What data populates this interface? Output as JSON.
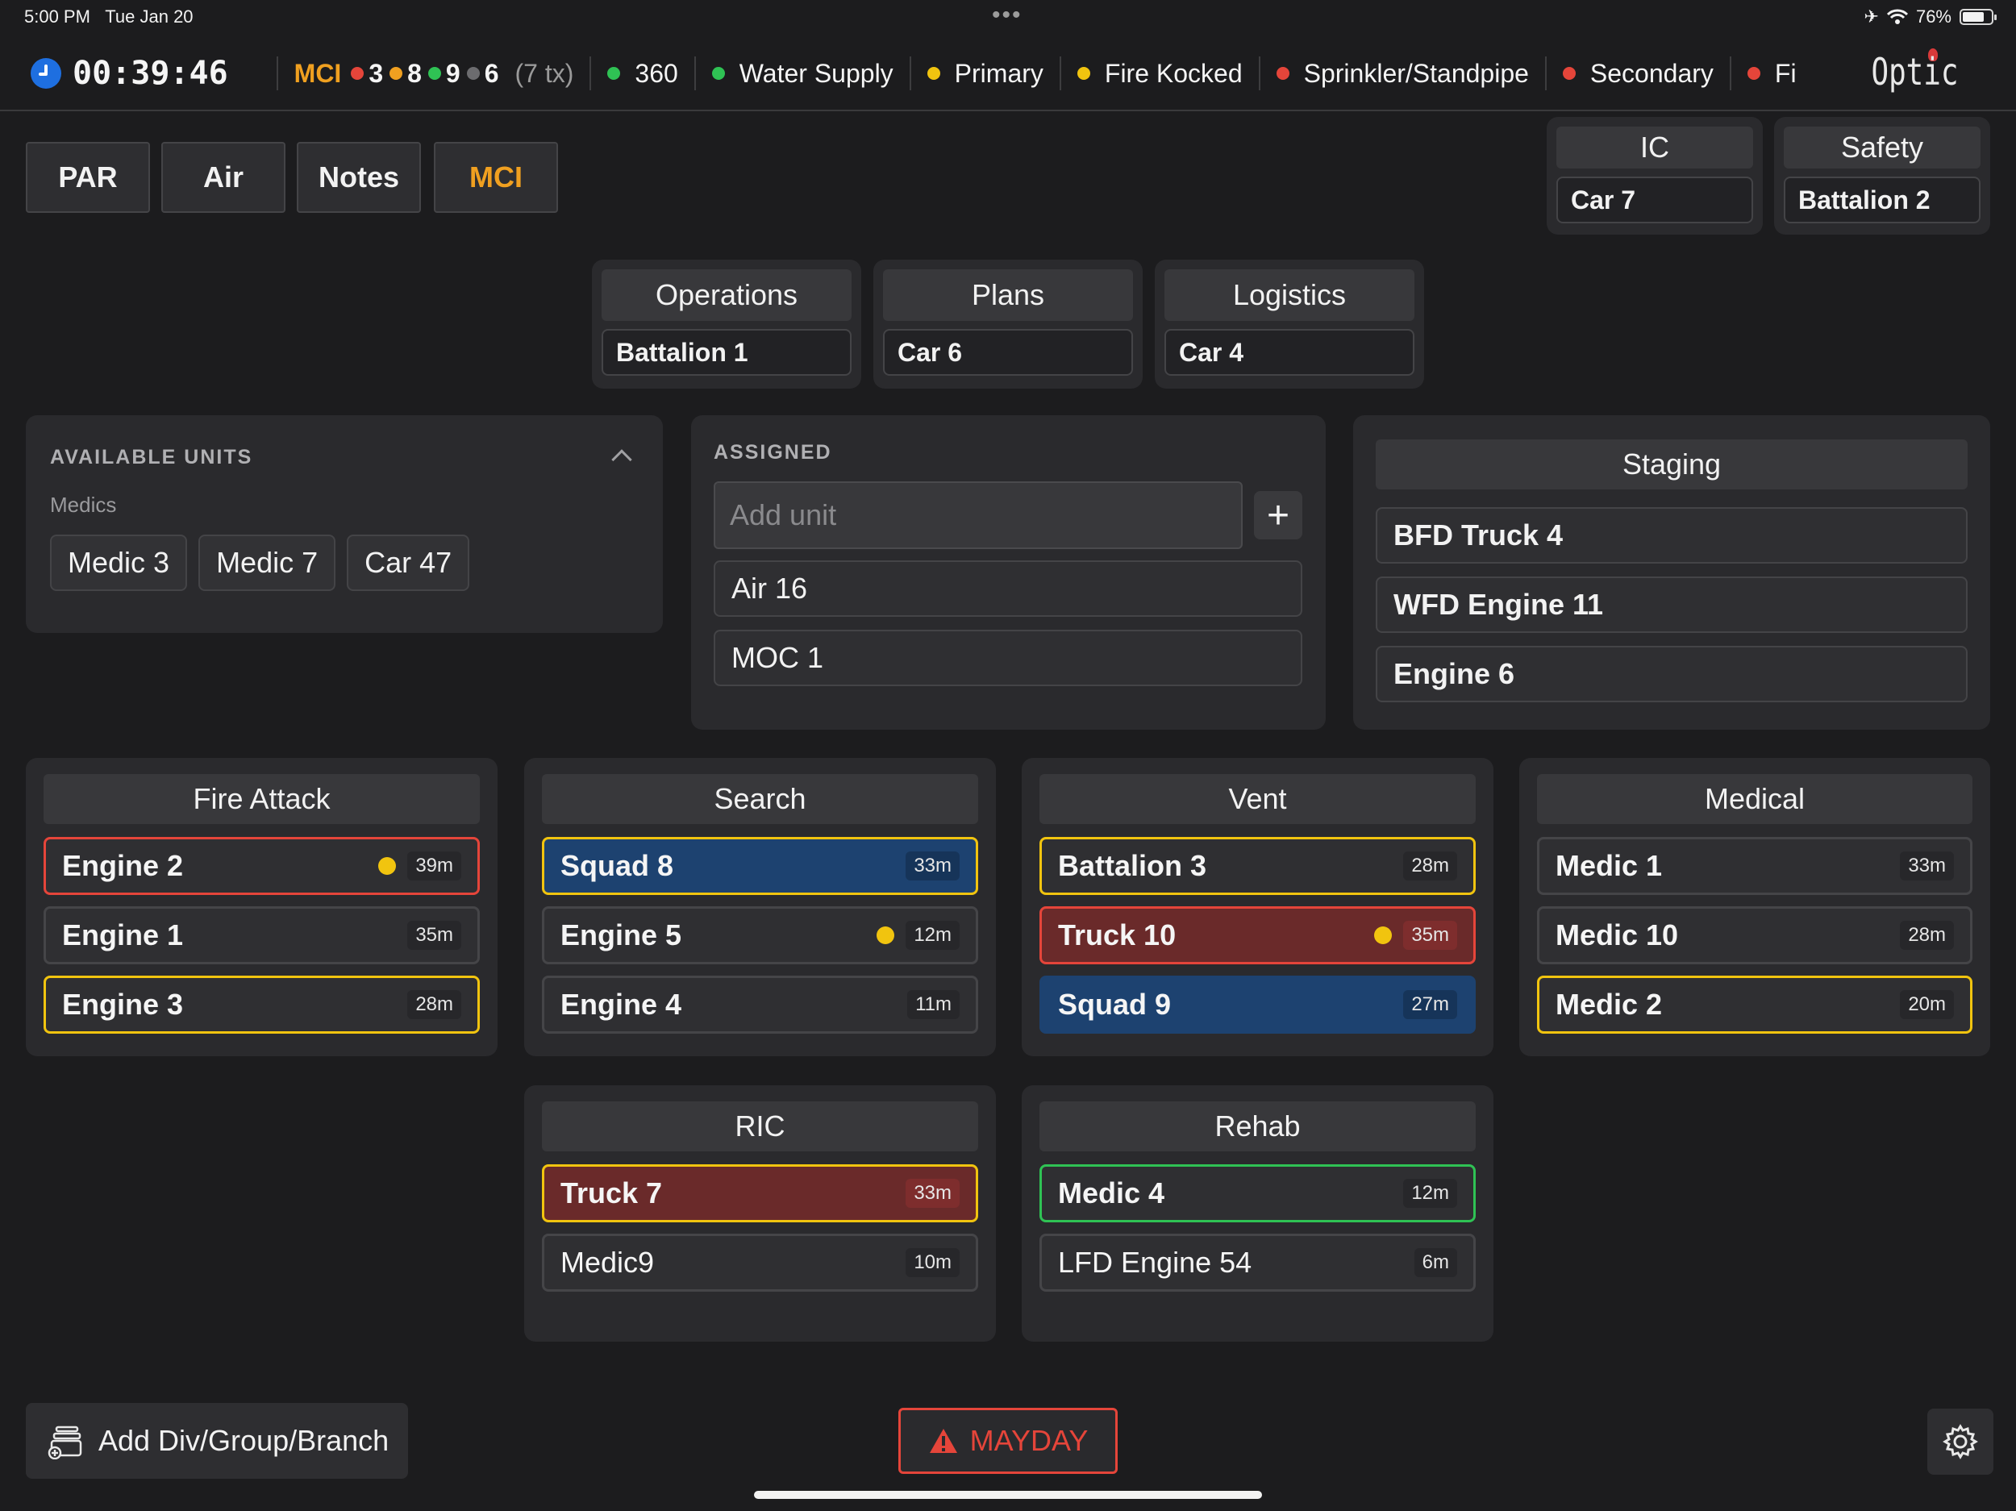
{
  "status_bar": {
    "time": "5:00 PM",
    "date": "Tue Jan 20",
    "battery": "76%",
    "battery_level": 0.76
  },
  "header": {
    "timer": "00:39:46",
    "mci": {
      "label": "MCI",
      "red": "3",
      "orange": "8",
      "green": "9",
      "gray": "6",
      "tx": "(7 tx)"
    },
    "benchmarks": [
      {
        "label": "360",
        "color": "#2fc254"
      },
      {
        "label": "Water Supply",
        "color": "#2fc254"
      },
      {
        "label": "Primary",
        "color": "#f1c40f"
      },
      {
        "label": "Fire Kocked",
        "color": "#f1c40f"
      },
      {
        "label": "Sprinkler/Standpipe",
        "color": "#e5453a"
      },
      {
        "label": "Secondary",
        "color": "#e5453a"
      },
      {
        "label": "Fi",
        "color": "#e5453a"
      }
    ],
    "logo": "Optic"
  },
  "tabs": [
    "PAR",
    "Air",
    "Notes",
    "MCI"
  ],
  "command": {
    "ic": {
      "title": "IC",
      "value": "Car 7"
    },
    "safety": {
      "title": "Safety",
      "value": "Battalion 2"
    },
    "operations": {
      "title": "Operations",
      "value": "Battalion 1"
    },
    "plans": {
      "title": "Plans",
      "value": "Car 6"
    },
    "logistics": {
      "title": "Logistics",
      "value": "Car 4"
    }
  },
  "available": {
    "title": "AVAILABLE UNITS",
    "subtitle": "Medics",
    "units": [
      "Medic 3",
      "Medic 7",
      "Car 47"
    ]
  },
  "assigned": {
    "title": "ASSIGNED",
    "placeholder": "Add unit",
    "add": "+",
    "units": [
      "Air 16",
      "MOC 1"
    ]
  },
  "staging": {
    "title": "Staging",
    "units": [
      "BFD Truck 4",
      "WFD Engine 11",
      "Engine 6"
    ]
  },
  "groups": {
    "fire_attack": {
      "title": "Fire Attack",
      "units": [
        {
          "name": "Engine 2",
          "time": "39m"
        },
        {
          "name": "Engine 1",
          "time": "35m"
        },
        {
          "name": "Engine 3",
          "time": "28m"
        }
      ]
    },
    "search": {
      "title": "Search",
      "units": [
        {
          "name": "Squad 8",
          "time": "33m"
        },
        {
          "name": "Engine 5",
          "time": "12m"
        },
        {
          "name": "Engine 4",
          "time": "11m"
        }
      ]
    },
    "vent": {
      "title": "Vent",
      "units": [
        {
          "name": "Battalion 3",
          "time": "28m"
        },
        {
          "name": "Truck 10",
          "time": "35m"
        },
        {
          "name": "Squad 9",
          "time": "27m"
        }
      ]
    },
    "medical": {
      "title": "Medical",
      "units": [
        {
          "name": "Medic 1",
          "time": "33m"
        },
        {
          "name": "Medic 10",
          "time": "28m"
        },
        {
          "name": "Medic 2",
          "time": "20m"
        }
      ]
    },
    "ric": {
      "title": "RIC",
      "units": [
        {
          "name": "Truck 7",
          "time": "33m"
        },
        {
          "name": "Medic9",
          "time": "10m"
        }
      ]
    },
    "rehab": {
      "title": "Rehab",
      "units": [
        {
          "name": "Medic 4",
          "time": "12m"
        },
        {
          "name": "LFD Engine 54",
          "time": "6m"
        }
      ]
    }
  },
  "footer": {
    "add_group": "Add Div/Group/Branch",
    "mayday": "MAYDAY"
  }
}
